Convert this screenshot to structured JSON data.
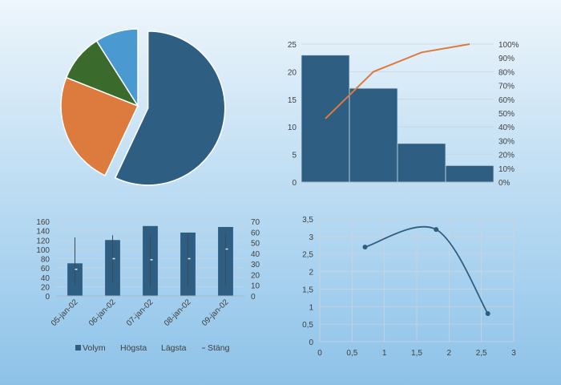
{
  "chart_data": [
    {
      "type": "pie",
      "slices": [
        {
          "value": 57,
          "color": "#2e5f82",
          "exploded": true
        },
        {
          "value": 24,
          "color": "#dd7a3e",
          "exploded": false
        },
        {
          "value": 10,
          "color": "#3a6b2c",
          "exploded": false
        },
        {
          "value": 9,
          "color": "#4a9ad1",
          "exploded": false
        }
      ]
    },
    {
      "type": "bar",
      "subtype": "pareto",
      "categories": [
        "",
        "",
        "",
        ""
      ],
      "values": [
        23,
        17,
        7,
        3
      ],
      "cumulative_percent": [
        46,
        80,
        94,
        100
      ],
      "ylim": [
        0,
        25
      ],
      "y_ticks": [
        "0",
        "5",
        "10",
        "15",
        "20",
        "25"
      ],
      "y2lim": [
        0,
        100
      ],
      "y2_ticks": [
        "0%",
        "10%",
        "20%",
        "30%",
        "40%",
        "50%",
        "60%",
        "70%",
        "80%",
        "90%",
        "100%"
      ],
      "bar_color": "#2e5f82",
      "line_color": "#dd7a3e",
      "grid": true
    },
    {
      "type": "bar",
      "subtype": "stock-volume-high-low-close",
      "categories": [
        "05-jan-02",
        "06-jan-02",
        "07-jan-02",
        "08-jan-02",
        "09-jan-02"
      ],
      "series": [
        {
          "name": "Volym",
          "axis": "left",
          "values": [
            70,
            120,
            150,
            136,
            148
          ]
        },
        {
          "name": "Högsta",
          "axis": "right",
          "values": [
            55,
            57,
            57,
            57,
            58
          ]
        },
        {
          "name": "Lägsta",
          "axis": "right",
          "values": [
            11,
            12,
            8,
            9,
            10
          ]
        },
        {
          "name": "Stäng",
          "axis": "right",
          "values": [
            25,
            35,
            34,
            35,
            44
          ]
        }
      ],
      "ylim": [
        0,
        160
      ],
      "y_ticks": [
        "0",
        "20",
        "40",
        "60",
        "80",
        "100",
        "120",
        "140",
        "160"
      ],
      "y2lim": [
        0,
        70
      ],
      "y2_ticks": [
        "0",
        "10",
        "20",
        "30",
        "40",
        "50",
        "60",
        "70"
      ],
      "bar_color": "#2e5f82",
      "legend": [
        "Volym",
        "Högsta",
        "Lägsta",
        "Stäng"
      ],
      "legend_position": "bottom",
      "grid": true
    },
    {
      "type": "scatter",
      "subtype": "smooth-line-markers",
      "points": [
        [
          0.7,
          2.7
        ],
        [
          1.8,
          3.2
        ],
        [
          2.6,
          0.8
        ]
      ],
      "xlim": [
        0,
        3
      ],
      "ylim": [
        0,
        3.5
      ],
      "x_ticks": [
        "0",
        "0,5",
        "1",
        "1,5",
        "2",
        "2,5",
        "3"
      ],
      "y_ticks": [
        "0",
        "0,5",
        "1",
        "1,5",
        "2",
        "2,5",
        "3",
        "3,5"
      ],
      "color": "#2e5f82",
      "grid": true
    }
  ]
}
